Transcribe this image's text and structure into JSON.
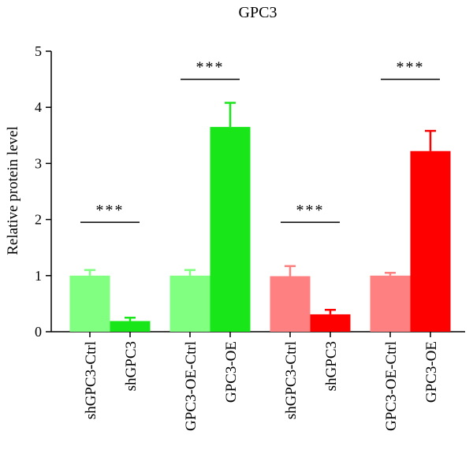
{
  "chart_data": {
    "type": "bar",
    "title": "GPC3",
    "xlabel": "",
    "ylabel": "Relative protein level",
    "ylim": [
      0,
      5
    ],
    "yticks": [
      "0",
      "1",
      "2",
      "3",
      "4",
      "5"
    ],
    "categories": [
      "shGPC3-Ctrl",
      "shGPC3",
      "GPC3-OE-Ctrl",
      "GPC3-OE",
      "shGPC3-Ctrl",
      "shGPC3",
      "GPC3-OE-Ctrl",
      "GPC3-OE"
    ],
    "values": [
      1.0,
      0.19,
      1.0,
      3.65,
      0.99,
      0.31,
      1.0,
      3.22
    ],
    "errors": [
      0.1,
      0.06,
      0.1,
      0.43,
      0.18,
      0.08,
      0.05,
      0.36
    ],
    "colors": [
      "#80ff80",
      "#19e619",
      "#80ff80",
      "#19e619",
      "#ff8080",
      "#ff0000",
      "#ff8080",
      "#ff0000"
    ],
    "significance": [
      {
        "pair": [
          0,
          1
        ],
        "label": "***",
        "y": 1.95
      },
      {
        "pair": [
          2,
          3
        ],
        "label": "***",
        "y": 4.5
      },
      {
        "pair": [
          4,
          5
        ],
        "label": "***",
        "y": 1.95
      },
      {
        "pair": [
          6,
          7
        ],
        "label": "***",
        "y": 4.5
      }
    ],
    "grid": false,
    "legend": "none"
  }
}
